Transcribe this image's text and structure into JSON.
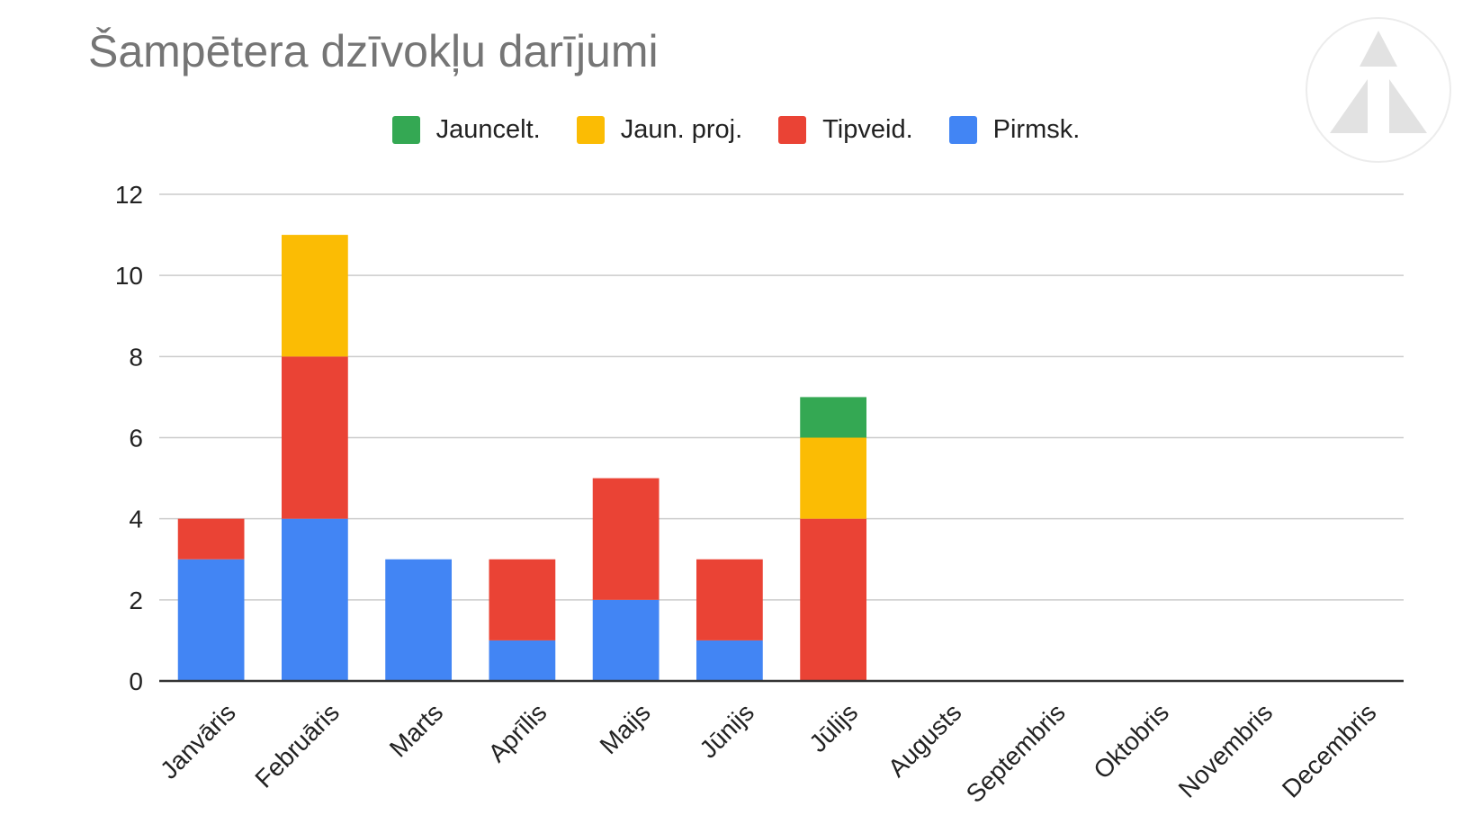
{
  "chart_data": {
    "type": "bar",
    "stacked": true,
    "title": "Šampētera dzīvokļu darījumi",
    "xlabel": "",
    "ylabel": "",
    "ylim": [
      0,
      12
    ],
    "yticks": [
      0,
      2,
      4,
      6,
      8,
      10,
      12
    ],
    "grid": true,
    "legend_position": "top",
    "categories": [
      "Janvāris",
      "Februāris",
      "Marts",
      "Aprīlis",
      "Maijs",
      "Jūnijs",
      "Jūlijs",
      "Augusts",
      "Septembris",
      "Oktobris",
      "Novembris",
      "Decembris"
    ],
    "series": [
      {
        "name": "Pirmsk.",
        "color": "#4285f4",
        "values": [
          3,
          4,
          3,
          1,
          2,
          1,
          0,
          0,
          0,
          0,
          0,
          0
        ]
      },
      {
        "name": "Tipveid.",
        "color": "#ea4335",
        "values": [
          1,
          4,
          0,
          2,
          3,
          2,
          4,
          0,
          0,
          0,
          0,
          0
        ]
      },
      {
        "name": "Jaun. proj.",
        "color": "#fbbc04",
        "values": [
          0,
          3,
          0,
          0,
          0,
          0,
          2,
          0,
          0,
          0,
          0,
          0
        ]
      },
      {
        "name": "Jauncelt.",
        "color": "#34a853",
        "values": [
          0,
          0,
          0,
          0,
          0,
          0,
          1,
          0,
          0,
          0,
          0,
          0
        ]
      }
    ],
    "legend_order": [
      "Jauncelt.",
      "Jaun. proj.",
      "Tipveid.",
      "Pirmsk."
    ]
  },
  "logo": {
    "icon": "triangle-logo-icon"
  }
}
